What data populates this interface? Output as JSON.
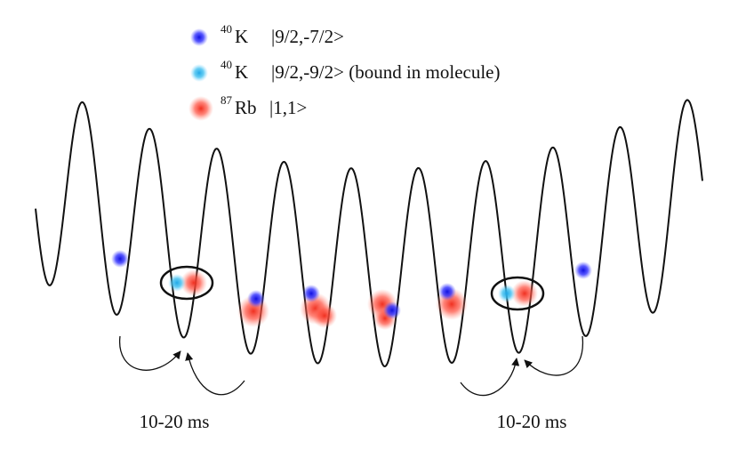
{
  "legend": [
    {
      "mass": "40",
      "element": "K",
      "state": "|9/2,-7/2>"
    },
    {
      "mass": "40",
      "element": "K",
      "state": "|9/2,-9/2> (bound in molecule)"
    },
    {
      "mass": "87",
      "element": "Rb",
      "state": "|1,1>"
    }
  ],
  "labels": [
    "10-20 ms",
    "10-20 ms"
  ]
}
